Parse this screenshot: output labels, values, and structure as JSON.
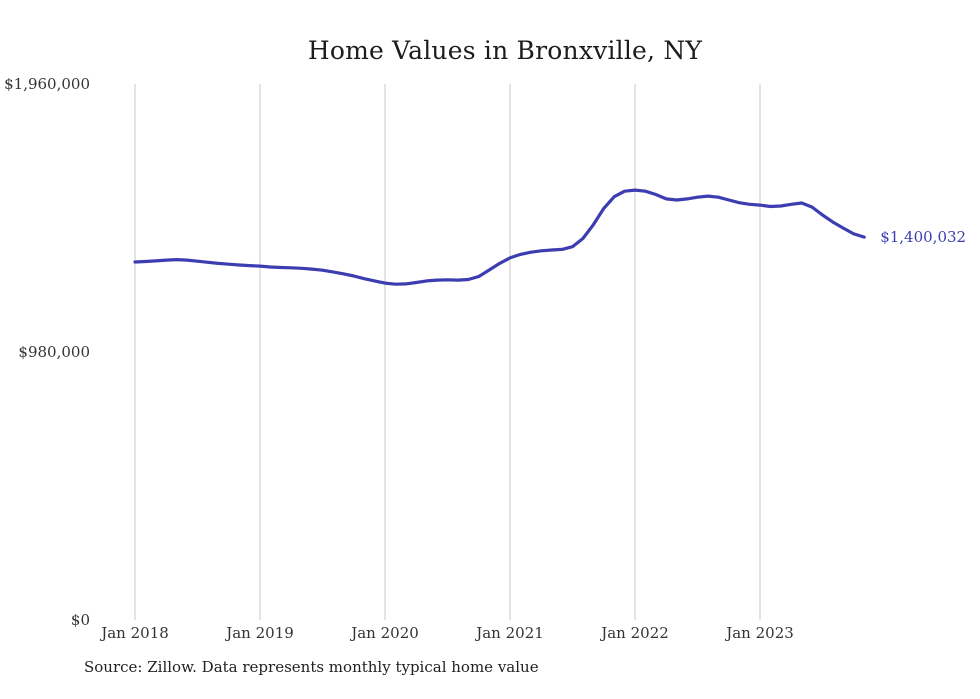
{
  "page": {
    "source_note": "Source: Zillow. Data represents monthly typical home value"
  },
  "chart_data": {
    "type": "line",
    "title": "Home Values in Bronxville, NY",
    "series_name": "Monthly typical home value",
    "xlabel": "",
    "ylabel": "",
    "ylim": [
      0,
      1960000
    ],
    "grid": "vertical-only",
    "legend": "none",
    "line_color": "#3d3db2",
    "grid_color": "#c9c9c9",
    "end_label": "$1,400,032",
    "yticks": [
      {
        "value": 0,
        "label": "$0"
      },
      {
        "value": 980000,
        "label": "$980,000"
      },
      {
        "value": 1960000,
        "label": "$1,960,000"
      }
    ],
    "xticks": [
      {
        "x": "2018-01",
        "label": "Jan 2018"
      },
      {
        "x": "2019-01",
        "label": "Jan 2019"
      },
      {
        "x": "2020-01",
        "label": "Jan 2020"
      },
      {
        "x": "2021-01",
        "label": "Jan 2021"
      },
      {
        "x": "2022-01",
        "label": "Jan 2022"
      },
      {
        "x": "2023-01",
        "label": "Jan 2023"
      }
    ],
    "x": [
      "2018-01",
      "2018-02",
      "2018-03",
      "2018-04",
      "2018-05",
      "2018-06",
      "2018-07",
      "2018-08",
      "2018-09",
      "2018-10",
      "2018-11",
      "2018-12",
      "2019-01",
      "2019-02",
      "2019-03",
      "2019-04",
      "2019-05",
      "2019-06",
      "2019-07",
      "2019-08",
      "2019-09",
      "2019-10",
      "2019-11",
      "2019-12",
      "2020-01",
      "2020-02",
      "2020-03",
      "2020-04",
      "2020-05",
      "2020-06",
      "2020-07",
      "2020-08",
      "2020-09",
      "2020-10",
      "2020-11",
      "2020-12",
      "2021-01",
      "2021-02",
      "2021-03",
      "2021-04",
      "2021-05",
      "2021-06",
      "2021-07",
      "2021-08",
      "2021-09",
      "2021-10",
      "2021-11",
      "2021-12",
      "2022-01",
      "2022-02",
      "2022-03",
      "2022-04",
      "2022-05",
      "2022-06",
      "2022-07",
      "2022-08",
      "2022-09",
      "2022-10",
      "2022-11",
      "2022-12",
      "2023-01",
      "2023-02",
      "2023-03",
      "2023-04",
      "2023-05",
      "2023-06",
      "2023-07",
      "2023-08",
      "2023-09",
      "2023-10",
      "2023-11"
    ],
    "values": [
      1309000,
      1311000,
      1313000,
      1316000,
      1318000,
      1316000,
      1312000,
      1308000,
      1304000,
      1301000,
      1298000,
      1296000,
      1294000,
      1291000,
      1289000,
      1288000,
      1286000,
      1283000,
      1279000,
      1273000,
      1266000,
      1258000,
      1248000,
      1240000,
      1232000,
      1228000,
      1229000,
      1234000,
      1240000,
      1243000,
      1244000,
      1243000,
      1245000,
      1256000,
      1280000,
      1304000,
      1324000,
      1337000,
      1345000,
      1350000,
      1353000,
      1355000,
      1365000,
      1395000,
      1445000,
      1505000,
      1548000,
      1568000,
      1572000,
      1568000,
      1556000,
      1540000,
      1536000,
      1540000,
      1546000,
      1550000,
      1546000,
      1536000,
      1526000,
      1520000,
      1517000,
      1512000,
      1514000,
      1520000,
      1525000,
      1510000,
      1481000,
      1455000,
      1433000,
      1412000,
      1400032
    ]
  }
}
